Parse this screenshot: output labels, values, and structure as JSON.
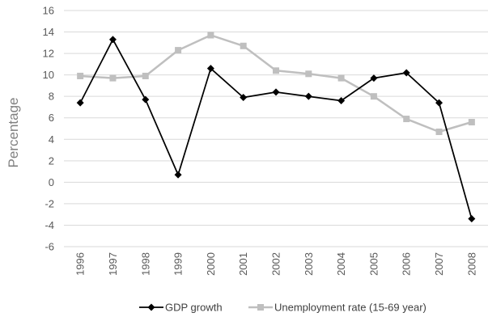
{
  "chart_data": {
    "type": "line",
    "categories": [
      "1996",
      "1997",
      "1998",
      "1999",
      "2000",
      "2001",
      "2002",
      "2003",
      "2004",
      "2005",
      "2006",
      "2007",
      "2008"
    ],
    "series": [
      {
        "name": "GDP growth",
        "color": "#000000",
        "marker": "diamond",
        "values": [
          7.4,
          13.3,
          7.7,
          0.7,
          10.6,
          7.9,
          8.4,
          8.0,
          7.6,
          9.7,
          10.2,
          7.4,
          -3.4
        ]
      },
      {
        "name": "Unemployment rate (15-69 year)",
        "color": "#bfbfbf",
        "marker": "square",
        "values": [
          9.9,
          9.7,
          9.9,
          12.3,
          13.7,
          12.7,
          10.4,
          10.1,
          9.7,
          8.0,
          5.9,
          4.7,
          5.6
        ]
      }
    ],
    "title": "",
    "xlabel": "",
    "ylabel": "Percentage",
    "ylim": [
      -6,
      16
    ],
    "yticks": [
      -6,
      -4,
      -2,
      0,
      2,
      4,
      6,
      8,
      10,
      12,
      14,
      16
    ],
    "grid": "horizontal",
    "legend_position": "bottom"
  }
}
